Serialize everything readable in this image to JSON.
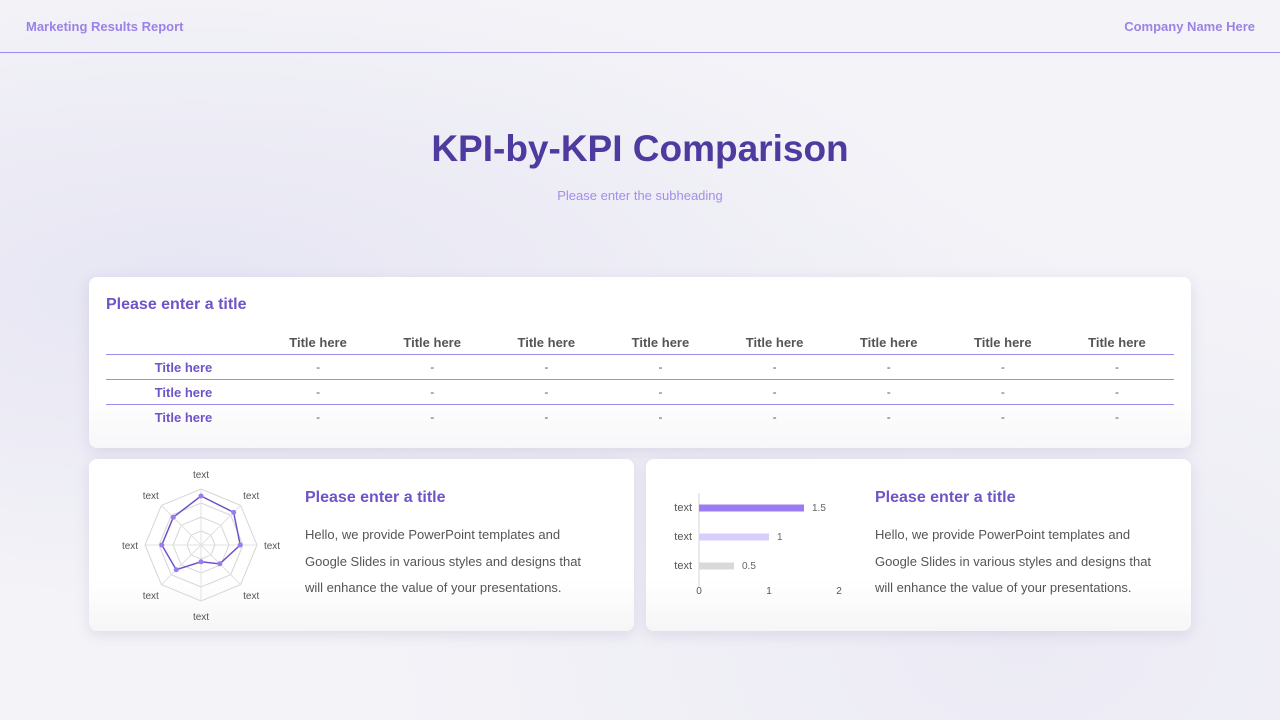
{
  "header": {
    "left": "Marketing Results Report",
    "right": "Company Name Here"
  },
  "title": "KPI-by-KPI Comparison",
  "subheading": "Please enter the subheading",
  "table_card": {
    "title": "Please enter a title",
    "columns": [
      "",
      "Title here",
      "Title here",
      "Title here",
      "Title here",
      "Title here",
      "Title here",
      "Title here",
      "Title here"
    ],
    "rows": [
      {
        "label": "Title here",
        "cells": [
          "-",
          "-",
          "-",
          "-",
          "-",
          "-",
          "-",
          "-"
        ]
      },
      {
        "label": "Title here",
        "cells": [
          "-",
          "-",
          "-",
          "-",
          "-",
          "-",
          "-",
          "-"
        ]
      },
      {
        "label": "Title here",
        "cells": [
          "-",
          "-",
          "-",
          "-",
          "-",
          "-",
          "-",
          "-"
        ]
      }
    ]
  },
  "radar_card": {
    "title": "Please enter a title",
    "body": "Hello, we provide PowerPoint templates and Google Slides in various styles and designs that will enhance the value of your presentations."
  },
  "bar_card": {
    "title": "Please enter a title",
    "body": "Hello, we provide PowerPoint templates and Google Slides in various styles and designs that will enhance the value of your presentations."
  },
  "colors": {
    "accent": "#6f54c9",
    "title": "#4f3aa0",
    "line": "#9d8cf0",
    "bar1": "#9b7bf0",
    "bar2": "#d9cdfb",
    "bar3": "#d9d9d9"
  },
  "chart_data": [
    {
      "type": "radar",
      "categories": [
        "text",
        "text",
        "text",
        "text",
        "text",
        "text",
        "text",
        "text"
      ],
      "series": [
        {
          "values": [
            3.5,
            3.3,
            2.8,
            1.9,
            1.2,
            2.5,
            2.8,
            2.8
          ]
        }
      ],
      "ylim": [
        0,
        4
      ],
      "grid": true
    },
    {
      "type": "bar",
      "orientation": "horizontal",
      "categories": [
        "text",
        "text",
        "text"
      ],
      "values": [
        1.5,
        1,
        0.5
      ],
      "data_labels": [
        "1.5",
        "1",
        "0.5"
      ],
      "xticks": [
        "0",
        "1",
        "2"
      ],
      "xlim": [
        0,
        2
      ]
    }
  ]
}
